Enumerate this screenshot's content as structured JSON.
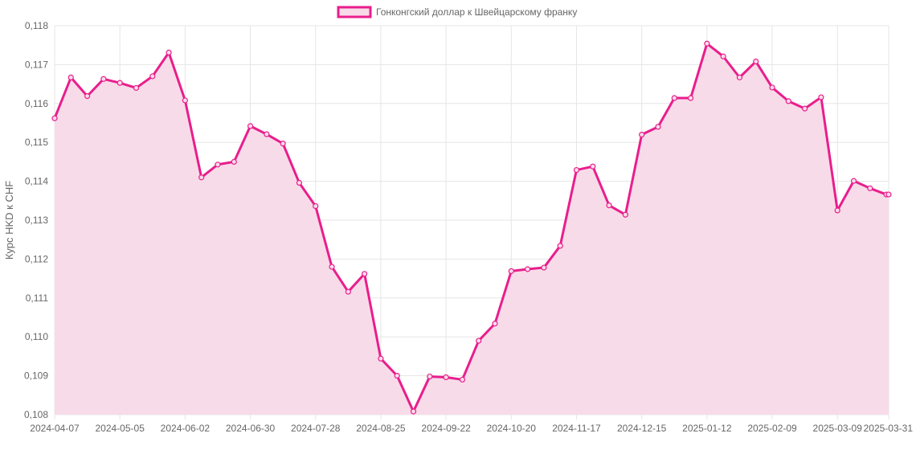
{
  "chart_data": {
    "type": "line",
    "title": "",
    "xlabel": "",
    "ylabel": "Курс HKD к CHF",
    "ylim": [
      0.108,
      0.118
    ],
    "y_ticks": [
      "0,108",
      "0,109",
      "0,110",
      "0,111",
      "0,112",
      "0,113",
      "0,114",
      "0,115",
      "0,116",
      "0,117",
      "0,118"
    ],
    "x_ticks": [
      "2024-04-07",
      "2024-05-05",
      "2024-06-02",
      "2024-06-30",
      "2024-07-28",
      "2024-08-25",
      "2024-09-22",
      "2024-10-20",
      "2024-11-17",
      "2024-12-15",
      "2025-01-12",
      "2025-02-09",
      "2025-03-09",
      "2025-03-31"
    ],
    "grid": true,
    "legend_position": "top",
    "series": [
      {
        "name": "Гонконгский доллар к Швейцарскому франку",
        "color": "#e91e8c",
        "fill": "#f8dbe9",
        "x": [
          "2024-04-07",
          "2024-04-14",
          "2024-04-21",
          "2024-04-28",
          "2024-05-05",
          "2024-05-12",
          "2024-05-19",
          "2024-05-26",
          "2024-06-02",
          "2024-06-09",
          "2024-06-16",
          "2024-06-23",
          "2024-06-30",
          "2024-07-07",
          "2024-07-14",
          "2024-07-21",
          "2024-07-28",
          "2024-08-04",
          "2024-08-11",
          "2024-08-18",
          "2024-08-25",
          "2024-09-01",
          "2024-09-08",
          "2024-09-15",
          "2024-09-22",
          "2024-09-29",
          "2024-10-06",
          "2024-10-13",
          "2024-10-20",
          "2024-10-27",
          "2024-11-03",
          "2024-11-10",
          "2024-11-17",
          "2024-11-24",
          "2024-12-01",
          "2024-12-08",
          "2024-12-15",
          "2024-12-22",
          "2024-12-29",
          "2025-01-05",
          "2025-01-12",
          "2025-01-19",
          "2025-01-26",
          "2025-02-02",
          "2025-02-09",
          "2025-02-16",
          "2025-02-23",
          "2025-03-02",
          "2025-03-09",
          "2025-03-16",
          "2025-03-23",
          "2025-03-30",
          "2025-03-31"
        ],
        "values": [
          0.11562,
          0.11667,
          0.11619,
          0.11663,
          0.11653,
          0.1164,
          0.1167,
          0.11731,
          0.11608,
          0.1141,
          0.11443,
          0.1145,
          0.11542,
          0.11521,
          0.11497,
          0.11396,
          0.11336,
          0.1118,
          0.11116,
          0.11162,
          0.10944,
          0.109,
          0.10808,
          0.10898,
          0.10896,
          0.1089,
          0.1099,
          0.11034,
          0.11169,
          0.11174,
          0.11178,
          0.11234,
          0.11429,
          0.11438,
          0.11338,
          0.11314,
          0.1152,
          0.1154,
          0.11614,
          0.11614,
          0.11754,
          0.11721,
          0.11667,
          0.11708,
          0.11641,
          0.11606,
          0.11587,
          0.11616,
          0.11325,
          0.11401,
          0.11382,
          0.11366,
          0.11366
        ]
      }
    ]
  }
}
